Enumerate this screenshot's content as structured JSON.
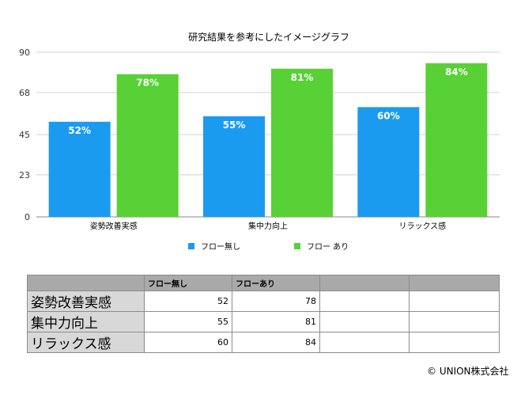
{
  "chart_data": {
    "type": "bar",
    "title": "研究結果を参考にしたイメージグラフ",
    "categories": [
      "姿勢改善実感",
      "集中力向上",
      "リラックス感"
    ],
    "series": [
      {
        "name": "フロー無し",
        "values": [
          52,
          55,
          60
        ],
        "labels": [
          "52%",
          "55%",
          "60%"
        ],
        "color": "#1a9bf0"
      },
      {
        "name": "フロー あり",
        "values": [
          78,
          81,
          84
        ],
        "labels": [
          "78%",
          "81%",
          "84%"
        ],
        "color": "#57d135"
      }
    ],
    "ylim": [
      0,
      90
    ],
    "yticks": [
      0,
      23,
      45,
      68,
      90
    ],
    "ytick_labels": [
      "0",
      "23",
      "45",
      "68",
      "90"
    ],
    "grid": true,
    "legend": "bottom"
  },
  "table": {
    "headers": [
      "",
      "フロー無し",
      "フローあり",
      "",
      ""
    ],
    "rows": [
      {
        "label": "姿勢改善実感",
        "cells": [
          "52",
          "78",
          "",
          ""
        ]
      },
      {
        "label": "集中力向上",
        "cells": [
          "55",
          "81",
          "",
          ""
        ]
      },
      {
        "label": "リラックス感",
        "cells": [
          "60",
          "84",
          "",
          ""
        ]
      }
    ]
  },
  "copyright": "© UNION株式会社"
}
